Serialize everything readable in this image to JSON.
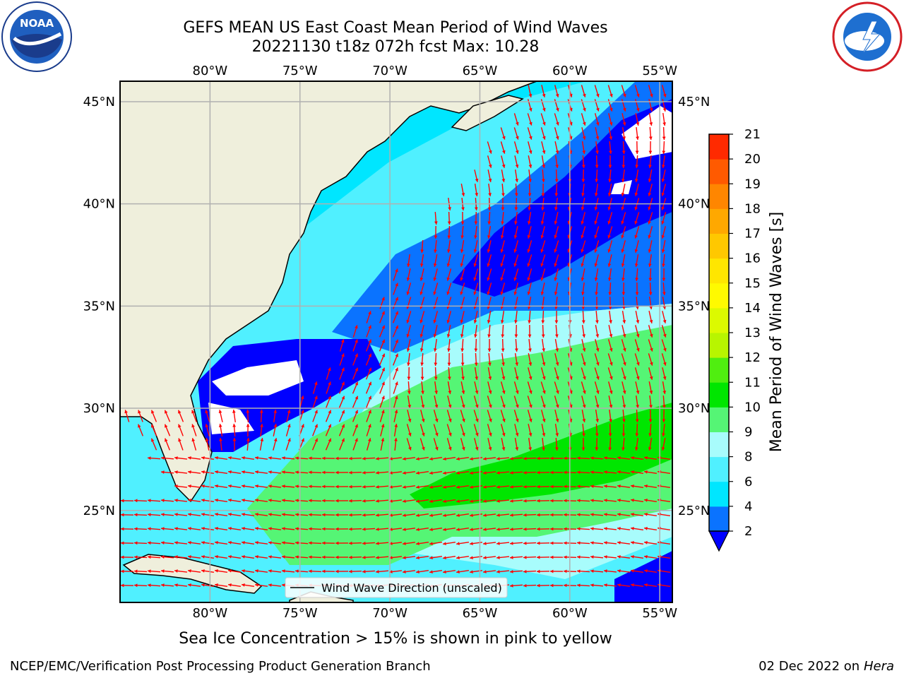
{
  "title": {
    "line1": "GEFS MEAN US East Coast Mean Period of Wind Waves",
    "line2": "20221130 t18z 072h fcst   Max: 10.28"
  },
  "logos": {
    "left": {
      "icon": "noaa-logo-icon",
      "text": "NOAA"
    },
    "right": {
      "icon": "nws-logo-icon"
    }
  },
  "map": {
    "lon_labels": [
      "80°W",
      "75°W",
      "70°W",
      "65°W",
      "60°W",
      "55°W"
    ],
    "lat_labels": [
      "45°N",
      "40°N",
      "35°N",
      "30°N",
      "25°N"
    ],
    "lon_values": [
      -80,
      -75,
      -70,
      -65,
      -60,
      -55
    ],
    "lat_values": [
      45,
      40,
      35,
      30,
      25
    ],
    "extent": {
      "lon_min": -85,
      "lon_max": -54.3,
      "lat_min": 20.5,
      "lat_max": 46
    },
    "land_color": "#efefdc",
    "arrow_color": "#ff0000",
    "legend_label": "Wind Wave Direction (unscaled)"
  },
  "colorbar": {
    "label": "Mean Period of Wind Waves [s]",
    "ticks": [
      "2",
      "4",
      "6",
      "8",
      "9",
      "10",
      "11",
      "12",
      "13",
      "14",
      "15",
      "16",
      "17",
      "18",
      "19",
      "20",
      "21"
    ],
    "colors": [
      "#0a73ff",
      "#00e6ff",
      "#50f0ff",
      "#a8fcfc",
      "#55f575",
      "#00e600",
      "#50ee10",
      "#b8f500",
      "#dcfa00",
      "#fffa00",
      "#ffe600",
      "#ffc800",
      "#ffa800",
      "#ff8600",
      "#ff5a00",
      "#ff2a00"
    ],
    "extend_color": "#0000ff"
  },
  "footer": {
    "ice_note": "Sea Ice Concentration > 15% is shown in pink to yellow",
    "branch": "NCEP/EMC/Verification Post Processing Product Generation Branch",
    "date": "02 Dec 2022 on",
    "machine": "Hera"
  }
}
